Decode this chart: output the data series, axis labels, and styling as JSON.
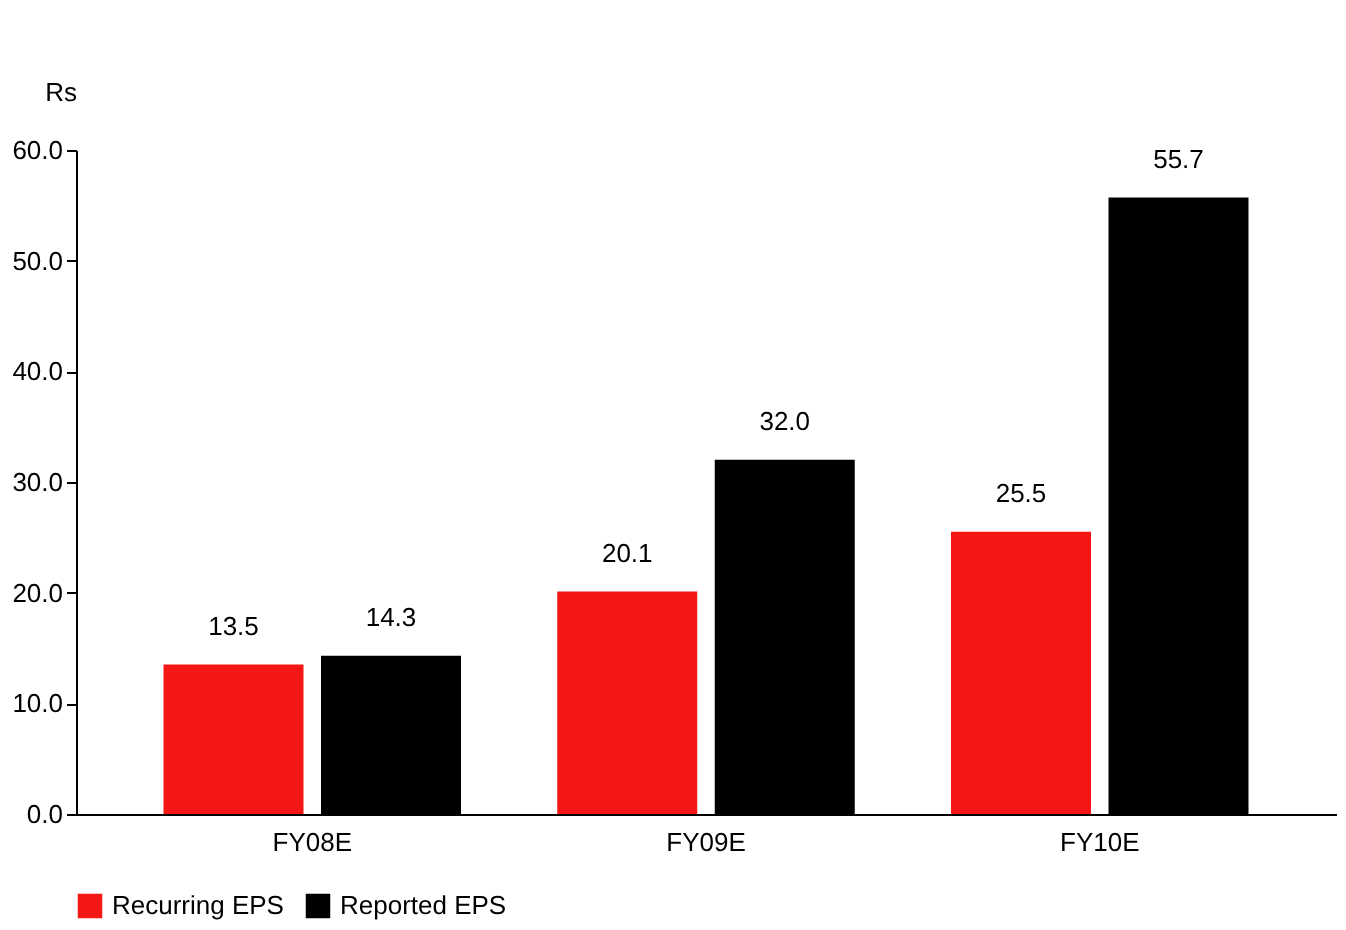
{
  "chart_data": {
    "type": "bar",
    "ylabel": "Rs",
    "categories": [
      "FY08E",
      "FY09E",
      "FY10E"
    ],
    "series": [
      {
        "name": "Recurring EPS",
        "color": "#f51616",
        "values": [
          13.5,
          20.1,
          25.5
        ],
        "value_labels": [
          "13.5",
          "20.1",
          "25.5"
        ]
      },
      {
        "name": "Reported EPS",
        "color": "#000000",
        "values": [
          14.3,
          32.0,
          55.7
        ],
        "value_labels": [
          "14.3",
          "32.0",
          "55.7"
        ]
      }
    ],
    "ylim": [
      0,
      60
    ],
    "yticks": [
      {
        "value": 0,
        "label": "0.0"
      },
      {
        "value": 10,
        "label": "10.0"
      },
      {
        "value": 20,
        "label": "20.0"
      },
      {
        "value": 30,
        "label": "30.0"
      },
      {
        "value": 40,
        "label": "40.0"
      },
      {
        "value": 50,
        "label": "50.0"
      },
      {
        "value": 60,
        "label": "60.0"
      }
    ],
    "legend": "bottom",
    "grid": false
  }
}
